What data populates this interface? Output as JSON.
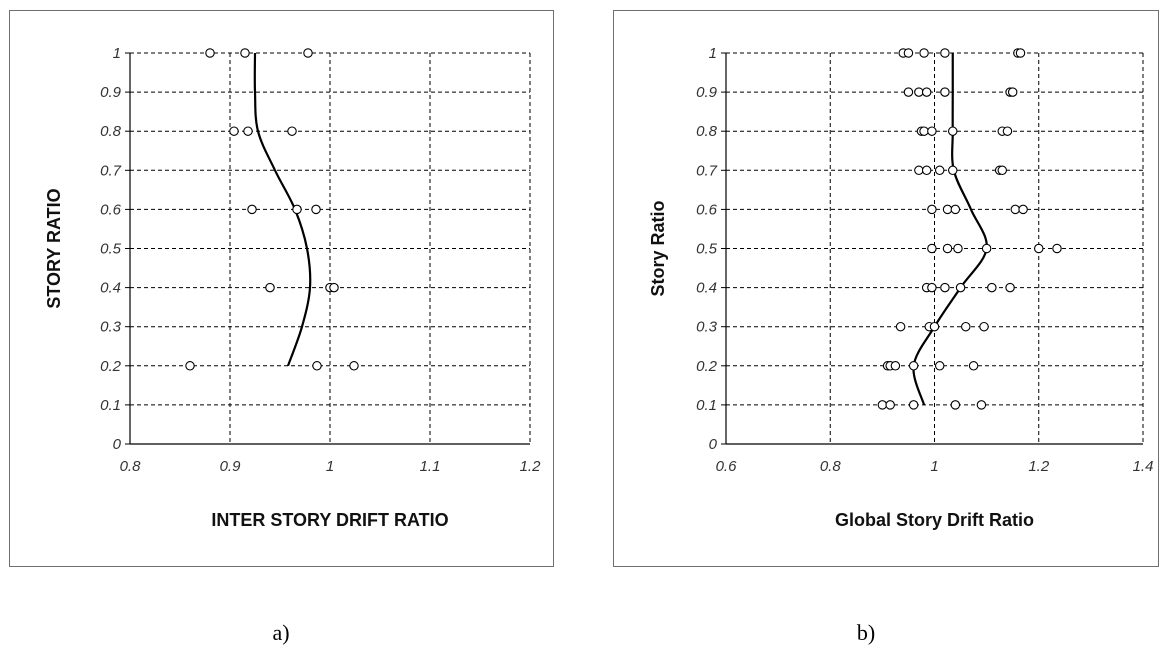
{
  "chart_data": [
    {
      "type": "scatter",
      "panel_label": "a)",
      "xlabel": "INTER STORY DRIFT RATIO",
      "ylabel": "STORY RATIO",
      "xlim": [
        0.8,
        1.2
      ],
      "ylim": [
        0,
        1
      ],
      "xticks": [
        "0.8",
        "0.9",
        "1",
        "1.1",
        "1.2"
      ],
      "yticks": [
        "0",
        "0.1",
        "0.2",
        "0.3",
        "0.4",
        "0.5",
        "0.6",
        "0.7",
        "0.8",
        "0.9",
        "1"
      ],
      "grid": true,
      "points": [
        {
          "x": 0.88,
          "y": 1.0
        },
        {
          "x": 0.915,
          "y": 1.0
        },
        {
          "x": 0.978,
          "y": 1.0
        },
        {
          "x": 0.904,
          "y": 0.8
        },
        {
          "x": 0.918,
          "y": 0.8
        },
        {
          "x": 0.962,
          "y": 0.8
        },
        {
          "x": 0.922,
          "y": 0.6
        },
        {
          "x": 0.967,
          "y": 0.6
        },
        {
          "x": 0.986,
          "y": 0.6
        },
        {
          "x": 0.94,
          "y": 0.4
        },
        {
          "x": 1.0,
          "y": 0.4
        },
        {
          "x": 1.004,
          "y": 0.4
        },
        {
          "x": 0.86,
          "y": 0.2
        },
        {
          "x": 0.987,
          "y": 0.2
        },
        {
          "x": 1.024,
          "y": 0.2
        }
      ],
      "trend": [
        {
          "x": 0.925,
          "y": 1.0
        },
        {
          "x": 0.925,
          "y": 0.9
        },
        {
          "x": 0.928,
          "y": 0.8
        },
        {
          "x": 0.945,
          "y": 0.7
        },
        {
          "x": 0.965,
          "y": 0.6
        },
        {
          "x": 0.977,
          "y": 0.5
        },
        {
          "x": 0.98,
          "y": 0.4
        },
        {
          "x": 0.972,
          "y": 0.3
        },
        {
          "x": 0.958,
          "y": 0.2
        }
      ]
    },
    {
      "type": "scatter",
      "panel_label": "b)",
      "xlabel": "Global Story Drift Ratio",
      "ylabel": "Story Ratio",
      "xlim": [
        0.6,
        1.4
      ],
      "ylim": [
        0,
        1
      ],
      "xticks": [
        "0.6",
        "0.8",
        "1",
        "1.2",
        "1.4"
      ],
      "yticks": [
        "0",
        "0.1",
        "0.2",
        "0.3",
        "0.4",
        "0.5",
        "0.6",
        "0.7",
        "0.8",
        "0.9",
        "1"
      ],
      "grid": true,
      "points": [
        {
          "x": 0.94,
          "y": 1.0
        },
        {
          "x": 0.95,
          "y": 1.0
        },
        {
          "x": 0.98,
          "y": 1.0
        },
        {
          "x": 1.02,
          "y": 1.0
        },
        {
          "x": 1.16,
          "y": 1.0
        },
        {
          "x": 1.165,
          "y": 1.0
        },
        {
          "x": 0.95,
          "y": 0.9
        },
        {
          "x": 0.97,
          "y": 0.9
        },
        {
          "x": 0.985,
          "y": 0.9
        },
        {
          "x": 1.02,
          "y": 0.9
        },
        {
          "x": 1.145,
          "y": 0.9
        },
        {
          "x": 1.15,
          "y": 0.9
        },
        {
          "x": 0.975,
          "y": 0.8
        },
        {
          "x": 0.98,
          "y": 0.8
        },
        {
          "x": 0.995,
          "y": 0.8
        },
        {
          "x": 1.035,
          "y": 0.8
        },
        {
          "x": 1.13,
          "y": 0.8
        },
        {
          "x": 1.14,
          "y": 0.8
        },
        {
          "x": 0.97,
          "y": 0.7
        },
        {
          "x": 0.985,
          "y": 0.7
        },
        {
          "x": 1.01,
          "y": 0.7
        },
        {
          "x": 1.035,
          "y": 0.7
        },
        {
          "x": 1.125,
          "y": 0.7
        },
        {
          "x": 1.13,
          "y": 0.7
        },
        {
          "x": 0.995,
          "y": 0.6
        },
        {
          "x": 1.025,
          "y": 0.6
        },
        {
          "x": 1.04,
          "y": 0.6
        },
        {
          "x": 1.155,
          "y": 0.6
        },
        {
          "x": 1.17,
          "y": 0.6
        },
        {
          "x": 0.995,
          "y": 0.5
        },
        {
          "x": 1.025,
          "y": 0.5
        },
        {
          "x": 1.045,
          "y": 0.5
        },
        {
          "x": 1.1,
          "y": 0.5
        },
        {
          "x": 1.2,
          "y": 0.5
        },
        {
          "x": 1.235,
          "y": 0.5
        },
        {
          "x": 0.985,
          "y": 0.4
        },
        {
          "x": 0.995,
          "y": 0.4
        },
        {
          "x": 1.02,
          "y": 0.4
        },
        {
          "x": 1.05,
          "y": 0.4
        },
        {
          "x": 1.11,
          "y": 0.4
        },
        {
          "x": 1.145,
          "y": 0.4
        },
        {
          "x": 0.935,
          "y": 0.3
        },
        {
          "x": 0.99,
          "y": 0.3
        },
        {
          "x": 1.0,
          "y": 0.3
        },
        {
          "x": 1.06,
          "y": 0.3
        },
        {
          "x": 1.095,
          "y": 0.3
        },
        {
          "x": 0.91,
          "y": 0.2
        },
        {
          "x": 0.915,
          "y": 0.2
        },
        {
          "x": 0.925,
          "y": 0.2
        },
        {
          "x": 0.96,
          "y": 0.2
        },
        {
          "x": 1.01,
          "y": 0.2
        },
        {
          "x": 1.075,
          "y": 0.2
        },
        {
          "x": 0.9,
          "y": 0.1
        },
        {
          "x": 0.915,
          "y": 0.1
        },
        {
          "x": 0.96,
          "y": 0.1
        },
        {
          "x": 1.04,
          "y": 0.1
        },
        {
          "x": 1.09,
          "y": 0.1
        }
      ],
      "trend": [
        {
          "x": 1.035,
          "y": 1.0
        },
        {
          "x": 1.035,
          "y": 0.9
        },
        {
          "x": 1.035,
          "y": 0.8
        },
        {
          "x": 1.037,
          "y": 0.7
        },
        {
          "x": 1.07,
          "y": 0.6
        },
        {
          "x": 1.1,
          "y": 0.5
        },
        {
          "x": 1.05,
          "y": 0.4
        },
        {
          "x": 1.0,
          "y": 0.3
        },
        {
          "x": 0.96,
          "y": 0.2
        },
        {
          "x": 0.98,
          "y": 0.1
        }
      ]
    }
  ]
}
